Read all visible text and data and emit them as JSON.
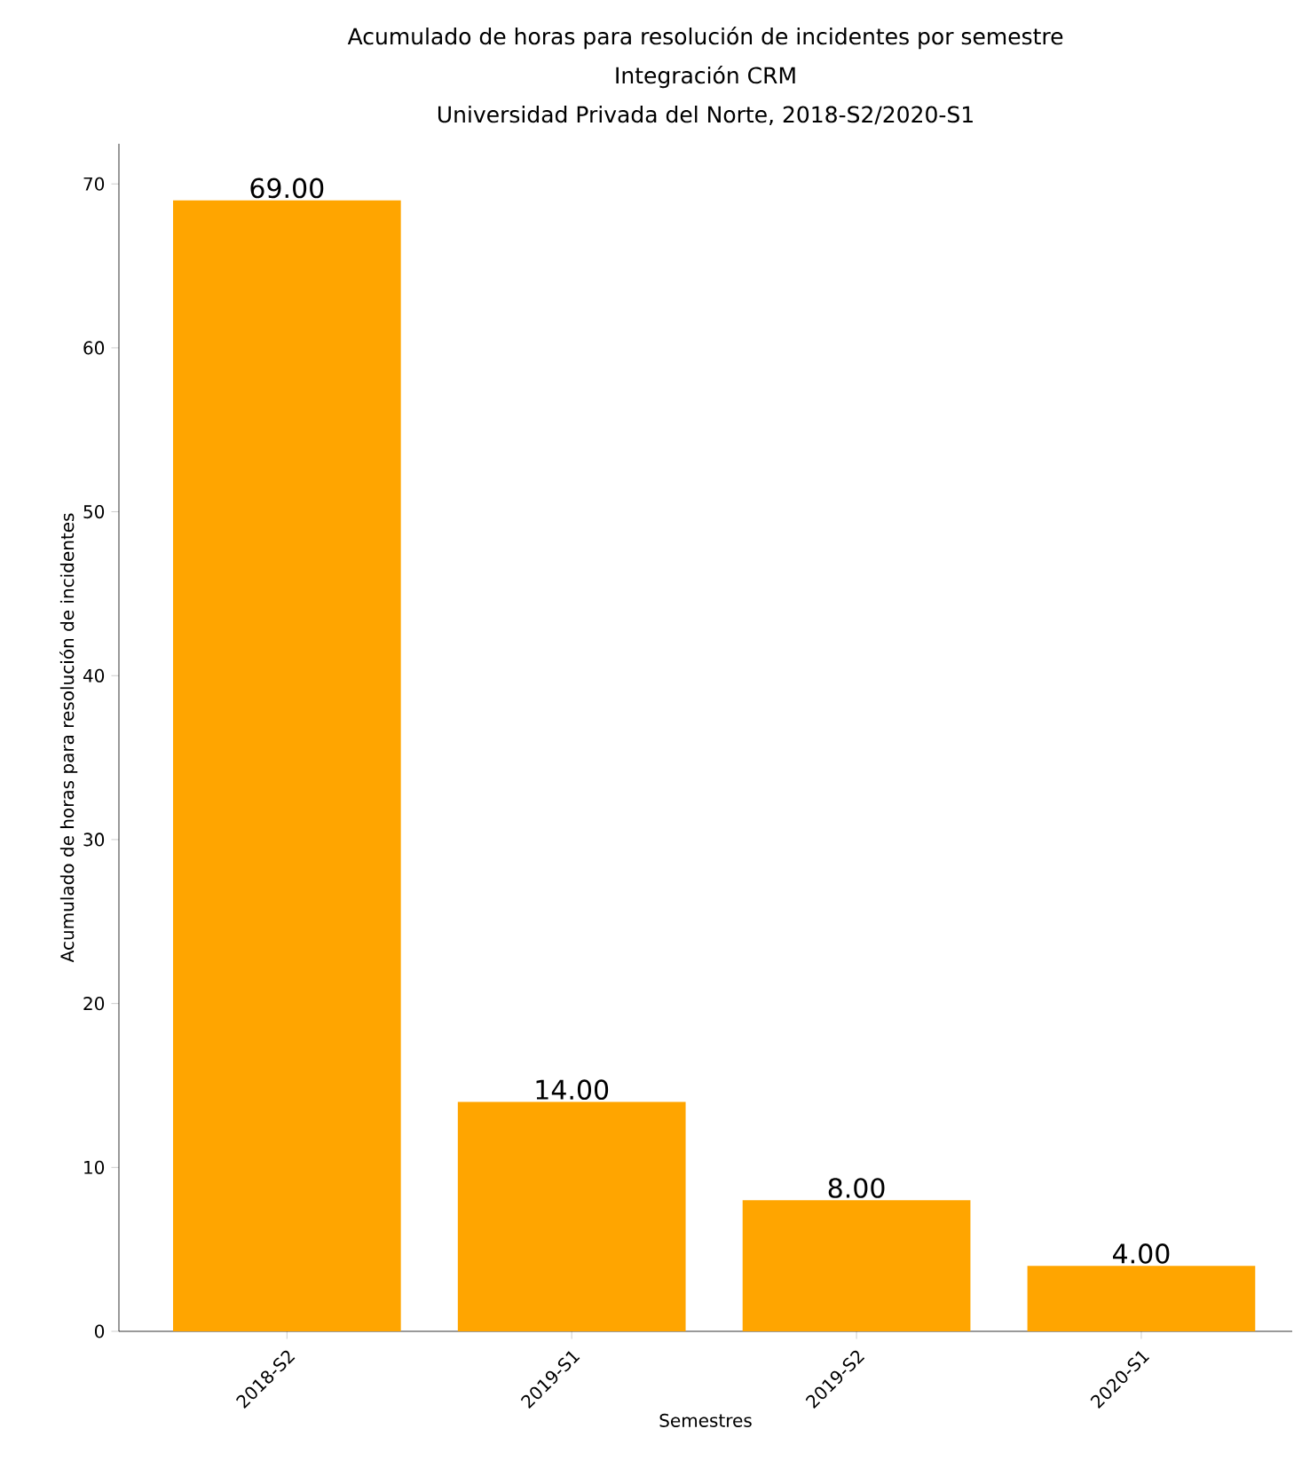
{
  "chart_data": {
    "type": "bar",
    "title": "Acumulado de horas para resolución de incidentes por semestre",
    "subtitle": "Integración CRM",
    "annotations": [
      "Universidad Privada del Norte, 2018-S2/2020-S1"
    ],
    "xlabel": "Semestres",
    "ylabel": "Acumulado de horas para resolución de incidentes",
    "categories": [
      "2018-S2",
      "2019-S1",
      "2019-S2",
      "2020-S1"
    ],
    "values": [
      69,
      14,
      8,
      4
    ],
    "value_labels": [
      "69.00",
      "14.00",
      "8.00",
      "4.00"
    ],
    "color": "#ffa500",
    "ylim": [
      0,
      72.45
    ],
    "yticks": [
      0,
      10,
      20,
      30,
      40,
      50,
      60,
      70
    ]
  }
}
